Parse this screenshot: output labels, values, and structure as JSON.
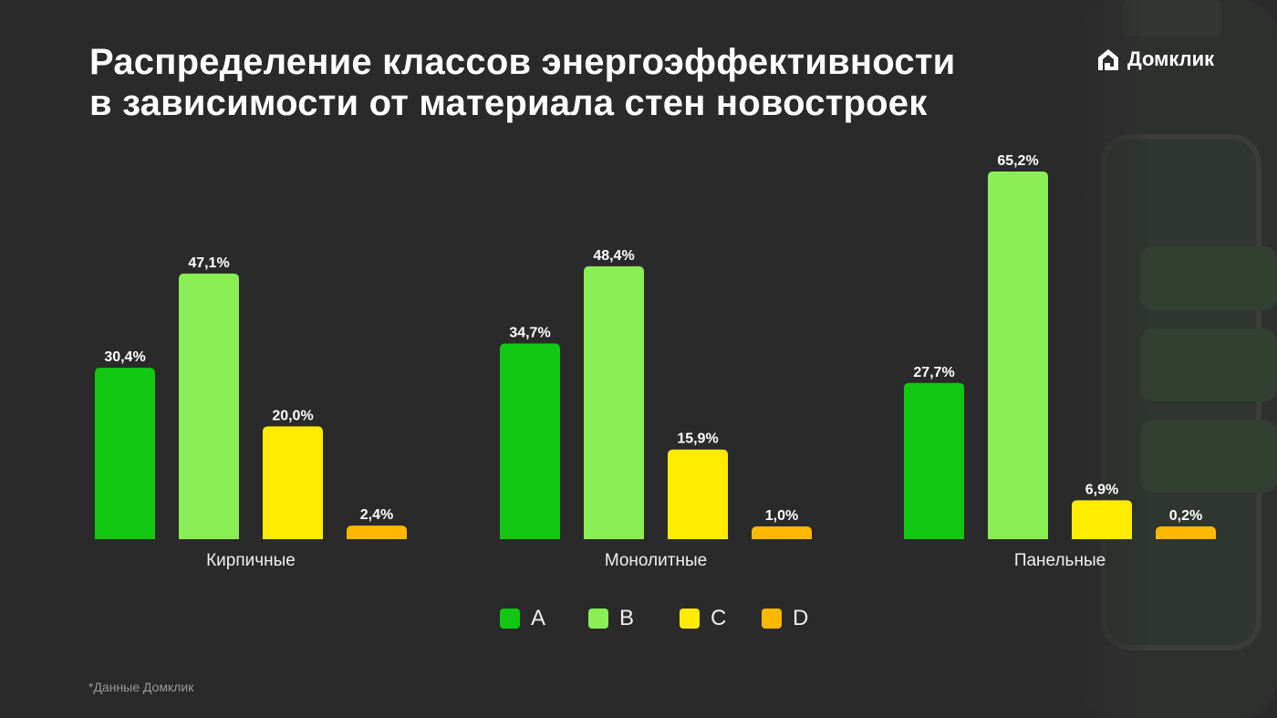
{
  "brand": {
    "name": "Домклик",
    "logo_icon": "house-logo-icon"
  },
  "title": {
    "line1": "Распределение классов энергоэффективности",
    "line2": "в зависимости от материала стен новостроек"
  },
  "footnote": "*Данные Домклик",
  "colors": {
    "A": "#11c711",
    "B": "#8aee55",
    "C": "#ffec00",
    "D": "#ffb800",
    "background": "#2a2a2a"
  },
  "chart_data": {
    "type": "bar",
    "title": "Распределение классов энергоэффективности в зависимости от материала стен новостроек",
    "categories": [
      "Кирпичные",
      "Монолитные",
      "Панельные"
    ],
    "series": [
      {
        "name": "A",
        "values": [
          30.4,
          34.7,
          27.7
        ],
        "labels": [
          "30,4%",
          "34,7%",
          "27,7%"
        ]
      },
      {
        "name": "B",
        "values": [
          47.1,
          48.4,
          65.2
        ],
        "labels": [
          "47,1%",
          "48,4%",
          "65,2%"
        ]
      },
      {
        "name": "C",
        "values": [
          20.0,
          15.9,
          6.9
        ],
        "labels": [
          "20,0%",
          "15,9%",
          "6,9%"
        ]
      },
      {
        "name": "D",
        "values": [
          2.4,
          1.0,
          0.2
        ],
        "labels": [
          "2,4%",
          "1,0%",
          "0,2%"
        ]
      }
    ],
    "ylim": [
      0,
      65.2
    ],
    "xlabel": "",
    "ylabel": "",
    "grid": false,
    "legend": "bottom-center"
  }
}
